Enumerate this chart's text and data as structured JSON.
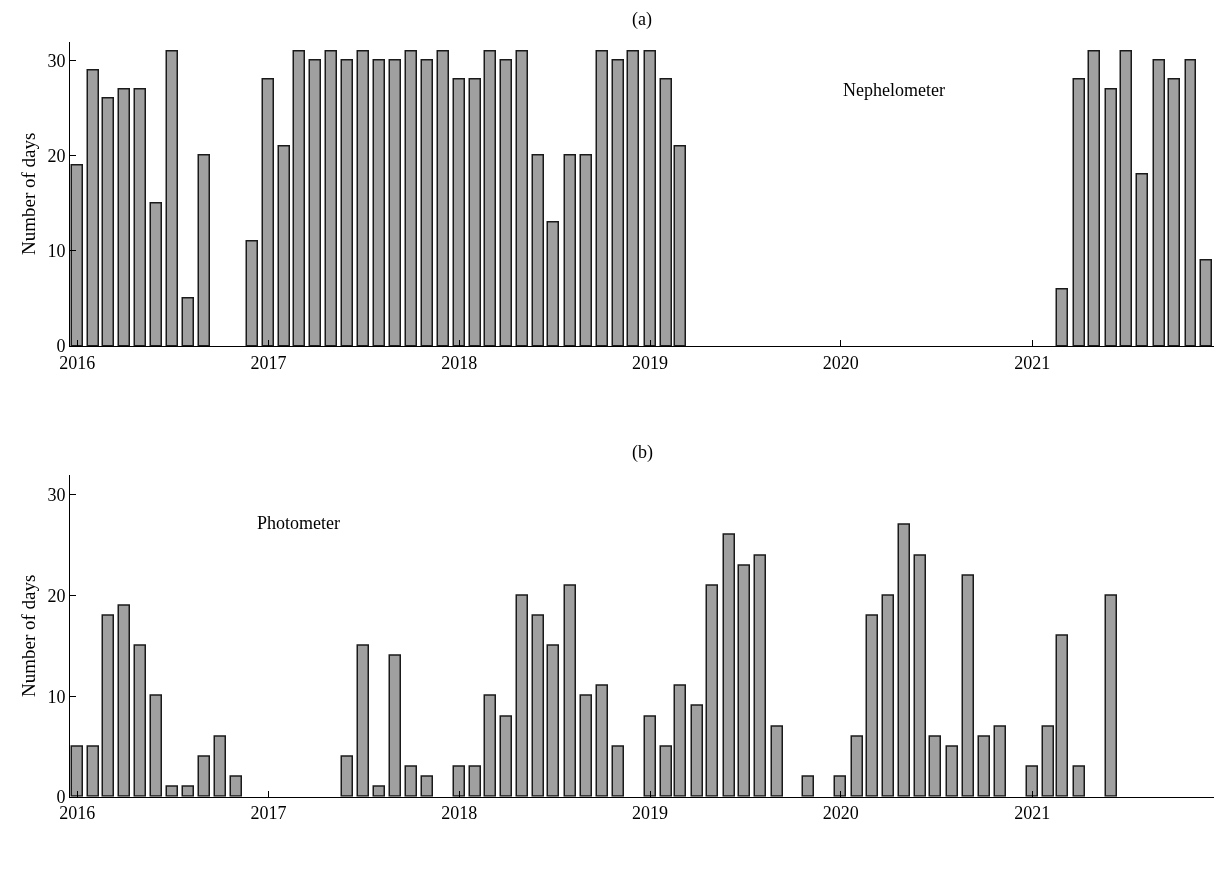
{
  "chart_data": [
    {
      "type": "bar",
      "title": "(a)",
      "ylabel": "Number of days",
      "annotations": [
        "Nephelometer"
      ],
      "x": [
        "2016-01",
        "2016-02",
        "2016-03",
        "2016-04",
        "2016-05",
        "2016-06",
        "2016-07",
        "2016-08",
        "2016-09",
        "2016-12",
        "2017-01",
        "2017-02",
        "2017-03",
        "2017-04",
        "2017-05",
        "2017-06",
        "2017-07",
        "2017-08",
        "2017-09",
        "2017-10",
        "2017-11",
        "2017-12",
        "2018-01",
        "2018-02",
        "2018-03",
        "2018-04",
        "2018-05",
        "2018-06",
        "2018-07",
        "2018-08",
        "2018-09",
        "2018-10",
        "2018-11",
        "2018-12",
        "2019-01",
        "2019-02",
        "2019-03",
        "2021-03",
        "2021-04",
        "2021-05",
        "2021-06",
        "2021-07",
        "2021-08",
        "2021-09",
        "2021-10",
        "2021-11",
        "2021-12"
      ],
      "values": [
        19,
        29,
        26,
        27,
        27,
        15,
        31,
        5,
        20,
        11,
        28,
        21,
        31,
        30,
        31,
        30,
        31,
        30,
        30,
        31,
        30,
        31,
        28,
        28,
        31,
        30,
        31,
        20,
        13,
        20,
        20,
        31,
        30,
        31,
        31,
        28,
        21,
        6,
        28,
        31,
        27,
        31,
        18,
        30,
        28,
        30,
        9
      ],
      "color": "#a0a0a0",
      "xlim": [
        "2015-12-18",
        "2021-12-15"
      ],
      "xticks": [
        {
          "value": "2016-01-01",
          "label": "2016"
        },
        {
          "value": "2017-01-01",
          "label": "2017"
        },
        {
          "value": "2018-01-01",
          "label": "2018"
        },
        {
          "value": "2019-01-01",
          "label": "2019"
        },
        {
          "value": "2020-01-01",
          "label": "2020"
        },
        {
          "value": "2021-01-01",
          "label": "2021"
        }
      ],
      "ylim": [
        0,
        32
      ],
      "yticks": [
        0,
        10,
        20,
        30
      ]
    },
    {
      "type": "bar",
      "title": "(b)",
      "ylabel": "Number of days",
      "annotations": [
        "Photometer"
      ],
      "x": [
        "2016-01",
        "2016-02",
        "2016-03",
        "2016-04",
        "2016-05",
        "2016-06",
        "2016-07",
        "2016-08",
        "2016-09",
        "2016-10",
        "2016-11",
        "2017-06",
        "2017-07",
        "2017-08",
        "2017-09",
        "2017-10",
        "2017-11",
        "2018-01",
        "2018-02",
        "2018-03",
        "2018-04",
        "2018-05",
        "2018-06",
        "2018-07",
        "2018-08",
        "2018-09",
        "2018-10",
        "2018-11",
        "2019-01",
        "2019-02",
        "2019-03",
        "2019-04",
        "2019-05",
        "2019-06",
        "2019-07",
        "2019-08",
        "2019-09",
        "2019-11",
        "2020-01",
        "2020-02",
        "2020-03",
        "2020-04",
        "2020-05",
        "2020-06",
        "2020-07",
        "2020-08",
        "2020-09",
        "2020-10",
        "2020-11",
        "2021-01",
        "2021-02",
        "2021-03",
        "2021-04",
        "2021-06"
      ],
      "values": [
        5,
        5,
        18,
        19,
        15,
        10,
        1,
        1,
        4,
        6,
        2,
        4,
        15,
        1,
        14,
        3,
        2,
        3,
        3,
        10,
        8,
        20,
        18,
        15,
        21,
        10,
        11,
        5,
        8,
        5,
        11,
        9,
        21,
        26,
        23,
        24,
        7,
        2,
        2,
        6,
        18,
        20,
        27,
        24,
        6,
        5,
        22,
        6,
        7,
        3,
        7,
        16,
        3,
        20
      ],
      "color": "#a0a0a0",
      "xlim": [
        "2015-12-18",
        "2021-12-15"
      ],
      "xticks": [
        {
          "value": "2016-01-01",
          "label": "2016"
        },
        {
          "value": "2017-01-01",
          "label": "2017"
        },
        {
          "value": "2018-01-01",
          "label": "2018"
        },
        {
          "value": "2019-01-01",
          "label": "2019"
        },
        {
          "value": "2020-01-01",
          "label": "2020"
        },
        {
          "value": "2021-01-01",
          "label": "2021"
        }
      ],
      "ylim": [
        0,
        32
      ],
      "yticks": [
        0,
        10,
        20,
        30
      ]
    }
  ]
}
